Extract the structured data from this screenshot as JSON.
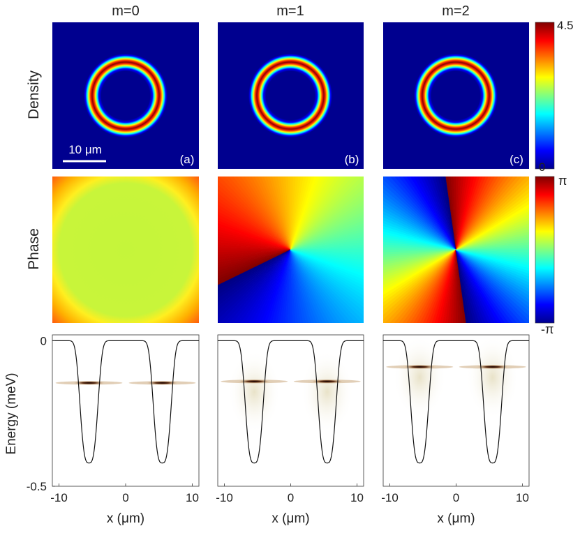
{
  "figure": {
    "columns": [
      {
        "title": "m=0",
        "panel_label": "(a)",
        "m": 0
      },
      {
        "title": "m=1",
        "panel_label": "(b)",
        "m": 1
      },
      {
        "title": "m=2",
        "panel_label": "(c)",
        "m": 2
      }
    ],
    "row_labels": {
      "density": "Density",
      "phase": "Phase",
      "energy": "Energy (meV)"
    },
    "scale_bar": {
      "label": "10 μm",
      "length_um": 10
    },
    "density_colorbar": {
      "max_label": "4.5",
      "min_label": "0",
      "max": 4.5,
      "min": 0
    },
    "phase_colorbar": {
      "max_label": "π",
      "min_label": "-π"
    },
    "colormap": "jet"
  },
  "chart_data": [
    {
      "type": "line",
      "panel": "(a) bottom",
      "xlabel": "x (μm)",
      "ylabel": "Energy (meV)",
      "xlim": [
        -11,
        11
      ],
      "ylim": [
        -0.5,
        0.02
      ],
      "x_ticks": [
        "-10",
        "0",
        "10"
      ],
      "y_ticks": [
        "0",
        "-0.5"
      ],
      "potential": {
        "well_centers_um": [
          -5.5,
          5.5
        ],
        "well_depth_meV": -0.42
      },
      "level_energy_meV": -0.145
    },
    {
      "type": "line",
      "panel": "(b) bottom",
      "xlabel": "x (μm)",
      "xlim": [
        -11,
        11
      ],
      "ylim": [
        -0.5,
        0.02
      ],
      "x_ticks": [
        "-10",
        "0",
        "10"
      ],
      "potential": {
        "well_centers_um": [
          -5.5,
          5.5
        ],
        "well_depth_meV": -0.42
      },
      "level_energy_meV": -0.14
    },
    {
      "type": "line",
      "panel": "(c) bottom",
      "xlabel": "x (μm)",
      "xlim": [
        -11,
        11
      ],
      "ylim": [
        -0.5,
        0.02
      ],
      "x_ticks": [
        "-10",
        "0",
        "10"
      ],
      "potential": {
        "well_centers_um": [
          -5.5,
          5.5
        ],
        "well_depth_meV": -0.42
      },
      "level_energy_meV": -0.09
    }
  ]
}
